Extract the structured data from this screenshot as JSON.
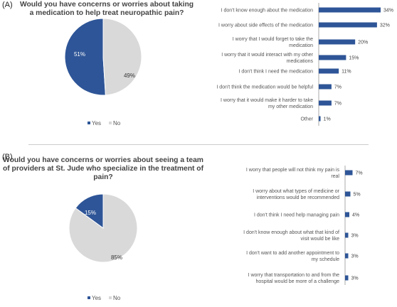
{
  "colors": {
    "yes": "#2e5597",
    "no": "#d9d9d9",
    "bar": "#2e5597",
    "axis": "#aaaaaa"
  },
  "chart_data": [
    {
      "type": "pie",
      "panel": "(A)",
      "title": "Would you have concerns or worries about taking a medication to help treat neuropathic pain?",
      "categories": [
        "Yes",
        "No"
      ],
      "values": [
        51,
        49
      ],
      "value_labels": [
        "51%",
        "49%"
      ],
      "legend": {
        "placement": "bottom",
        "entries": [
          "Yes",
          "No"
        ]
      }
    },
    {
      "type": "bar",
      "orientation": "horizontal",
      "panel": "(A)",
      "categories": [
        [
          "I don't know enough about the medication"
        ],
        [
          "I worry about side effects of the medication"
        ],
        [
          "I worry that I would forget to take the",
          "medication"
        ],
        [
          "I worry that it would interact with my other",
          "medications"
        ],
        [
          "I don't think I need the medication"
        ],
        [
          "I don't think the medication would be helpful"
        ],
        [
          "I worry that it would make it harder to take",
          "my other medication"
        ],
        [
          "Other"
        ]
      ],
      "values": [
        34,
        32,
        20,
        15,
        11,
        7,
        7,
        1
      ],
      "value_labels": [
        "34%",
        "32%",
        "20%",
        "15%",
        "11%",
        "7%",
        "7%",
        "1%"
      ],
      "xlim": [
        0,
        34
      ]
    },
    {
      "type": "pie",
      "panel": "(B)",
      "title": "Would you have concerns or worries about seeing a team of providers at St. Jude who specialize in the treatment of pain?",
      "categories": [
        "Yes",
        "No"
      ],
      "values": [
        15,
        85
      ],
      "value_labels": [
        "15%",
        "85%"
      ],
      "legend": {
        "placement": "bottom",
        "entries": [
          "Yes",
          "No"
        ]
      }
    },
    {
      "type": "bar",
      "orientation": "horizontal",
      "panel": "(B)",
      "categories": [
        [
          "I worry that people will not think my pain is",
          "real"
        ],
        [
          "I worry about what types of medicine or",
          "interventions would be recommended"
        ],
        [
          "I don't think I need help managing pain"
        ],
        [
          "I don't know enough about what that kind of",
          "visit would be like"
        ],
        [
          "I don't want to add another appointment to",
          "my schedule"
        ],
        [
          "I worry that transportation to and from the",
          "hospital would be more of a challenge"
        ]
      ],
      "values": [
        7,
        5,
        4,
        3,
        3,
        3
      ],
      "value_labels": [
        "7%",
        "5%",
        "4%",
        "3%",
        "3%",
        "3%"
      ],
      "xlim": [
        0,
        34
      ]
    }
  ]
}
